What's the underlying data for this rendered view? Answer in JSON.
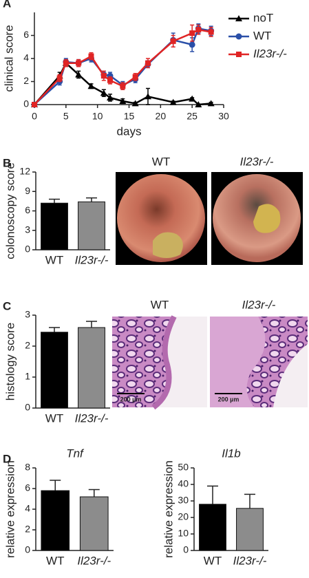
{
  "chart_data": [
    {
      "type": "line",
      "panel": "A",
      "xlabel": "days",
      "ylabel": "clinical score",
      "x": [
        0,
        4,
        5,
        7,
        9,
        11,
        12,
        14,
        16,
        18,
        22,
        25,
        26,
        28
      ],
      "xlim": [
        0,
        30
      ],
      "xticks": [
        0,
        5,
        10,
        15,
        20,
        25,
        30
      ],
      "ylim": [
        0,
        8
      ],
      "yticks": [
        0,
        2,
        4,
        6
      ],
      "series": [
        {
          "name": "noT",
          "color": "#000000",
          "marker": "triangle",
          "values": [
            0,
            2.5,
            3.6,
            2.6,
            1.6,
            1.0,
            0.6,
            0.3,
            0.1,
            0.7,
            0.2,
            0.5,
            0.0,
            0.1
          ],
          "errors": [
            0,
            0.3,
            0.3,
            0.3,
            0.2,
            0.3,
            0.3,
            0.2,
            0.1,
            0.7,
            0.1,
            0.1,
            0.05,
            0.1
          ]
        },
        {
          "name": "WT",
          "color": "#2a4fa8",
          "marker": "circle",
          "values": [
            0,
            2.0,
            3.7,
            3.6,
            4.0,
            2.6,
            2.5,
            1.7,
            2.2,
            3.5,
            5.6,
            5.2,
            6.6,
            6.4
          ],
          "errors": [
            0,
            0.3,
            0.3,
            0.3,
            0.3,
            0.3,
            0.3,
            0.3,
            0.3,
            0.3,
            0.6,
            0.6,
            0.4,
            0.4
          ]
        },
        {
          "name": "Il23r-/-",
          "color": "#e02424",
          "marker": "square",
          "values": [
            0,
            2.3,
            3.6,
            3.6,
            4.2,
            2.5,
            2.1,
            1.6,
            2.4,
            3.6,
            5.5,
            6.2,
            6.5,
            6.3
          ],
          "errors": [
            0,
            0.3,
            0.3,
            0.3,
            0.3,
            0.4,
            0.3,
            0.3,
            0.3,
            0.4,
            0.5,
            0.7,
            0.4,
            0.4
          ]
        }
      ]
    },
    {
      "type": "bar",
      "panel": "B",
      "ylabel": "colonoscopy score",
      "categories": [
        "WT",
        "Il23r-/-"
      ],
      "values": [
        7.2,
        7.4
      ],
      "errors": [
        0.6,
        0.6
      ],
      "colors": [
        "#000000",
        "#8c8c8c"
      ],
      "ylim": [
        0,
        12
      ],
      "yticks": [
        0,
        3,
        6,
        9,
        12
      ],
      "image_labels": [
        "WT",
        "Il23r-/-"
      ]
    },
    {
      "type": "bar",
      "panel": "C",
      "ylabel": "histology score",
      "categories": [
        "WT",
        "Il23r-/-"
      ],
      "values": [
        2.45,
        2.6
      ],
      "errors": [
        0.15,
        0.2
      ],
      "colors": [
        "#000000",
        "#8c8c8c"
      ],
      "ylim": [
        0,
        3
      ],
      "yticks": [
        0,
        1,
        2,
        3
      ],
      "image_labels": [
        "WT",
        "Il23r-/-"
      ],
      "scale_bars": [
        "200 µm",
        "200 µm"
      ]
    },
    {
      "type": "bar",
      "panel": "D",
      "title": "Tnf",
      "ylabel": "relative expression",
      "categories": [
        "WT",
        "Il23r-/-"
      ],
      "values": [
        5.8,
        5.2
      ],
      "errors": [
        1.0,
        0.7
      ],
      "colors": [
        "#000000",
        "#8c8c8c"
      ],
      "ylim": [
        0,
        8
      ],
      "yticks": [
        0,
        2,
        4,
        6,
        8
      ]
    },
    {
      "type": "bar",
      "title": "Il1b",
      "ylabel": "relative expression",
      "categories": [
        "WT",
        "Il23r-/-"
      ],
      "values": [
        28,
        25.5
      ],
      "errors": [
        11,
        8.5
      ],
      "colors": [
        "#000000",
        "#8c8c8c"
      ],
      "ylim": [
        0,
        50
      ],
      "yticks": [
        0,
        10,
        20,
        30,
        40,
        50
      ]
    }
  ]
}
